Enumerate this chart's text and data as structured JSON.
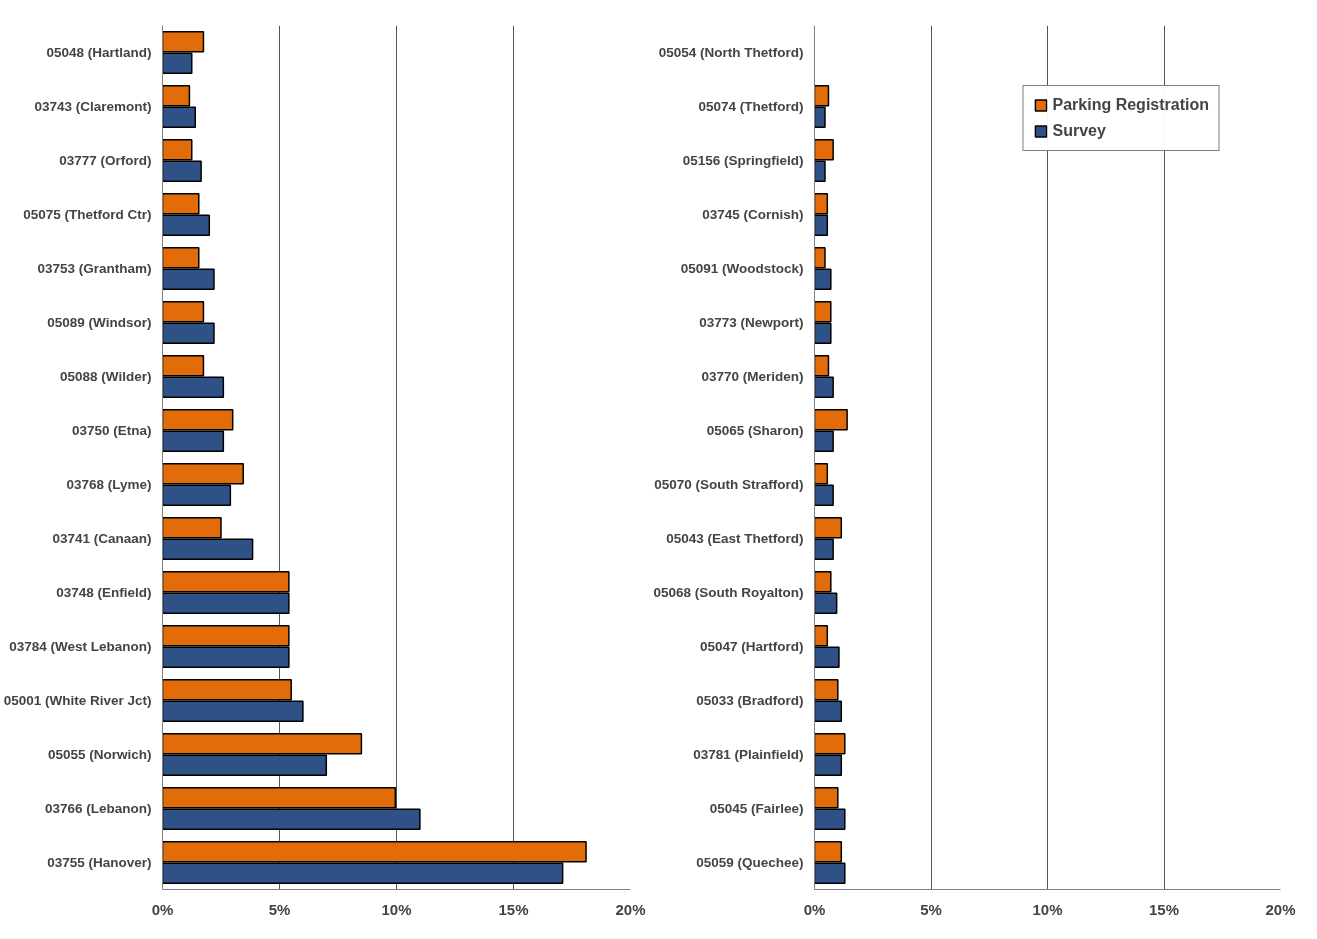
{
  "chart_data": [
    {
      "type": "bar",
      "orientation": "horizontal",
      "categories": [
        "05048 (Hartland)",
        "03743 (Claremont)",
        "03777 (Orford)",
        "05075 (Thetford Ctr)",
        "03753 (Grantham)",
        "05089 (Windsor)",
        "05088 (Wilder)",
        "03750 (Etna)",
        "03768 (Lyme)",
        "03741 (Canaan)",
        "03748 (Enfield)",
        "03784 (West Lebanon)",
        "05001 (White River Jct)",
        "05055 (Norwich)",
        "03766 (Lebanon)",
        "03755 (Hanover)"
      ],
      "series": [
        {
          "color": "#e36c0a",
          "values": [
            1.75,
            1.15,
            1.25,
            1.55,
            1.55,
            1.75,
            1.75,
            3.0,
            3.45,
            2.5,
            5.4,
            5.4,
            5.5,
            8.5,
            9.95,
            18.1
          ]
        },
        {
          "color": "#2f5286",
          "values": [
            1.25,
            1.4,
            1.65,
            2.0,
            2.2,
            2.2,
            2.6,
            2.6,
            2.9,
            3.85,
            5.4,
            5.4,
            6.0,
            7.0,
            11.0,
            17.1
          ]
        }
      ],
      "xlim": [
        0,
        20
      ],
      "xticks": [
        {
          "value": 0,
          "label": "0%"
        },
        {
          "value": 5,
          "label": "5%"
        },
        {
          "value": 10,
          "label": "10%"
        },
        {
          "value": 15,
          "label": "15%"
        },
        {
          "value": 20,
          "label": "20%"
        }
      ],
      "grid": "x",
      "legend": false
    },
    {
      "type": "bar",
      "orientation": "horizontal",
      "categories": [
        "05054 (North Thetford)",
        "05074 (Thetford)",
        "05156 (Springfield)",
        "03745 (Cornish)",
        "05091 (Woodstock)",
        "03773 (Newport)",
        "03770 (Meriden)",
        "05065 (Sharon)",
        "05070 (South Strafford)",
        "05043 (East Thetford)",
        "05068 (South Royalton)",
        "05047 (Hartford)",
        "05033 (Bradford)",
        "03781 (Plainfield)",
        "05045 (Fairlee)",
        "05059 (Quechee)"
      ],
      "series": [
        {
          "name": "Parking Registration",
          "color": "#e36c0a",
          "values": [
            null,
            0.6,
            0.8,
            0.55,
            0.45,
            0.7,
            0.6,
            1.4,
            0.55,
            1.15,
            0.7,
            0.55,
            1.0,
            1.3,
            1.0,
            1.15
          ]
        },
        {
          "name": "Survey",
          "color": "#2f5286",
          "values": [
            null,
            0.45,
            0.45,
            0.55,
            0.7,
            0.7,
            0.8,
            0.8,
            0.8,
            0.8,
            0.95,
            1.05,
            1.15,
            1.15,
            1.3,
            1.3
          ]
        }
      ],
      "xlim": [
        0,
        20
      ],
      "xticks": [
        {
          "value": 0,
          "label": "0%"
        },
        {
          "value": 5,
          "label": "5%"
        },
        {
          "value": 10,
          "label": "10%"
        },
        {
          "value": 15,
          "label": "15%"
        },
        {
          "value": 20,
          "label": "20%"
        }
      ],
      "grid": "x",
      "legend": "top right"
    }
  ]
}
